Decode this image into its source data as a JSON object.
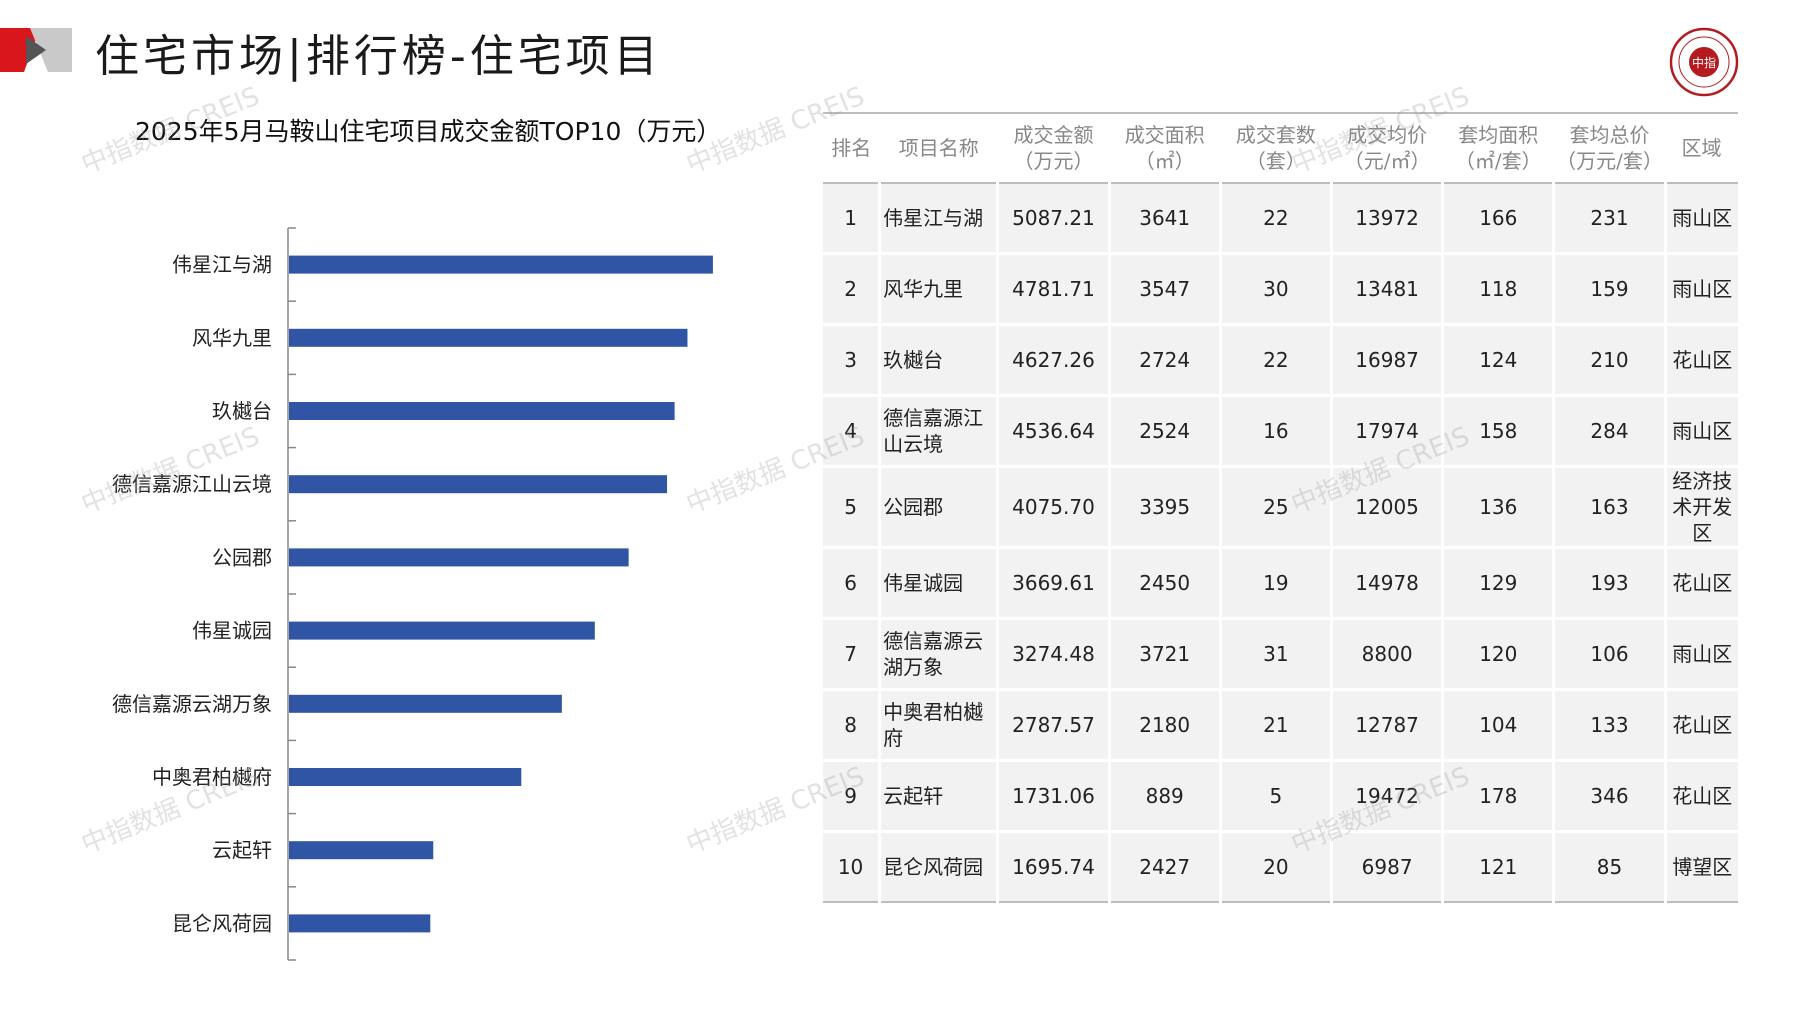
{
  "header": {
    "title": "住宅市场|排行榜-住宅项目",
    "brand_color": "#d9161c",
    "logo_text": "中指"
  },
  "watermark_text": "中指数据 CREIS",
  "chart_data": {
    "type": "bar",
    "orientation": "horizontal",
    "title": "2025年5月马鞍山住宅项目成交金额TOP10（万元）",
    "categories": [
      "伟星江与湖",
      "风华九里",
      "玖樾台",
      "德信嘉源江山云境",
      "公园郡",
      "伟星诚园",
      "德信嘉源云湖万象",
      "中奥君柏樾府",
      "云起轩",
      "昆仑风荷园"
    ],
    "values": [
      5087.21,
      4781.71,
      4627.26,
      4536.64,
      4075.7,
      3669.61,
      3274.48,
      2787.57,
      1731.06,
      1695.74
    ],
    "bar_color": "#2f55a4",
    "xlim": [
      0,
      6000
    ]
  },
  "table": {
    "headers": [
      {
        "line1": "排名",
        "line2": ""
      },
      {
        "line1": "项目名称",
        "line2": ""
      },
      {
        "line1": "成交金额",
        "line2": "（万元）"
      },
      {
        "line1": "成交面积",
        "line2": "（㎡）"
      },
      {
        "line1": "成交套数",
        "line2": "（套）"
      },
      {
        "line1": "成交均价",
        "line2": "（元/㎡）"
      },
      {
        "line1": "套均面积",
        "line2": "（㎡/套）"
      },
      {
        "line1": "套均总价",
        "line2": "（万元/套）"
      },
      {
        "line1": "区域",
        "line2": ""
      }
    ],
    "rows": [
      {
        "rank": "1",
        "name": "伟星江与湖",
        "amount": "5087.21",
        "area": "3641",
        "units": "22",
        "price": "13972",
        "avg_area": "166",
        "avg_total": "231",
        "region": "雨山区"
      },
      {
        "rank": "2",
        "name": "风华九里",
        "amount": "4781.71",
        "area": "3547",
        "units": "30",
        "price": "13481",
        "avg_area": "118",
        "avg_total": "159",
        "region": "雨山区"
      },
      {
        "rank": "3",
        "name": "玖樾台",
        "amount": "4627.26",
        "area": "2724",
        "units": "22",
        "price": "16987",
        "avg_area": "124",
        "avg_total": "210",
        "region": "花山区"
      },
      {
        "rank": "4",
        "name": "德信嘉源江山云境",
        "amount": "4536.64",
        "area": "2524",
        "units": "16",
        "price": "17974",
        "avg_area": "158",
        "avg_total": "284",
        "region": "雨山区"
      },
      {
        "rank": "5",
        "name": "公园郡",
        "amount": "4075.70",
        "area": "3395",
        "units": "25",
        "price": "12005",
        "avg_area": "136",
        "avg_total": "163",
        "region": "经济技术开发区"
      },
      {
        "rank": "6",
        "name": "伟星诚园",
        "amount": "3669.61",
        "area": "2450",
        "units": "19",
        "price": "14978",
        "avg_area": "129",
        "avg_total": "193",
        "region": "花山区"
      },
      {
        "rank": "7",
        "name": "德信嘉源云湖万象",
        "amount": "3274.48",
        "area": "3721",
        "units": "31",
        "price": "8800",
        "avg_area": "120",
        "avg_total": "106",
        "region": "雨山区"
      },
      {
        "rank": "8",
        "name": "中奥君柏樾府",
        "amount": "2787.57",
        "area": "2180",
        "units": "21",
        "price": "12787",
        "avg_area": "104",
        "avg_total": "133",
        "region": "花山区"
      },
      {
        "rank": "9",
        "name": "云起轩",
        "amount": "1731.06",
        "area": "889",
        "units": "5",
        "price": "19472",
        "avg_area": "178",
        "avg_total": "346",
        "region": "花山区"
      },
      {
        "rank": "10",
        "name": "昆仑风荷园",
        "amount": "1695.74",
        "area": "2427",
        "units": "20",
        "price": "6987",
        "avg_area": "121",
        "avg_total": "85",
        "region": "博望区"
      }
    ]
  }
}
